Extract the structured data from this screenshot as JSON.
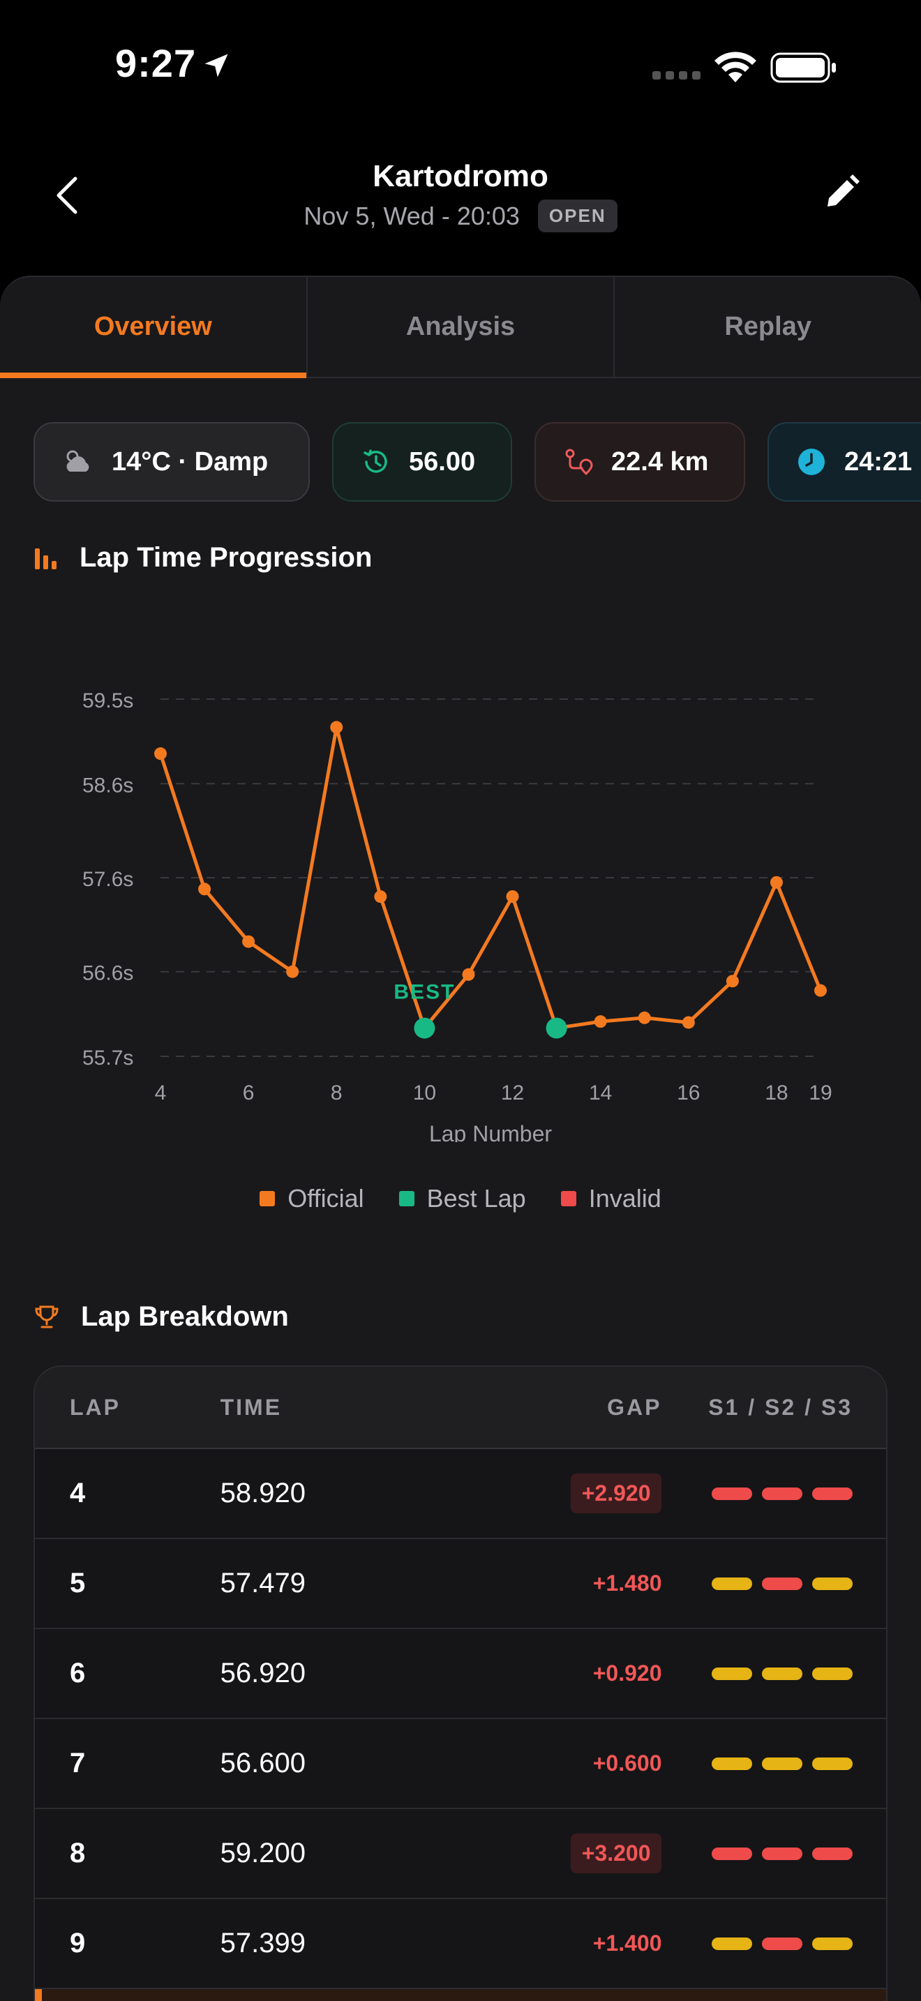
{
  "status_bar": {
    "time": "9:27"
  },
  "header": {
    "title": "Kartodromo",
    "subtitle": "Nov 5, Wed - 20:03",
    "badge": "OPEN"
  },
  "tabs": [
    {
      "label": "Overview",
      "active": true
    },
    {
      "label": "Analysis",
      "active": false
    },
    {
      "label": "Replay",
      "active": false
    }
  ],
  "chips": {
    "weather": {
      "icon": "cloud-sun-icon",
      "label": "14°C · Damp"
    },
    "best": {
      "icon": "history-icon",
      "label": "56.00"
    },
    "distance": {
      "icon": "route-icon",
      "label": "22.4 km"
    },
    "duration": {
      "icon": "clock-icon",
      "label": "24:21"
    }
  },
  "chart_section": {
    "title": "Lap Time Progression",
    "icon": "bar-chart-icon"
  },
  "chart_data": {
    "type": "line",
    "xlabel": "Lap Number",
    "ylabel": "",
    "x": [
      4,
      5,
      6,
      7,
      8,
      9,
      10,
      11,
      12,
      13,
      14,
      15,
      16,
      17,
      18,
      19
    ],
    "series": [
      {
        "name": "Official",
        "values": [
          58.92,
          57.479,
          56.92,
          56.6,
          59.2,
          57.399,
          56.0,
          56.57,
          57.4,
          56.0,
          56.07,
          56.11,
          56.06,
          56.5,
          57.55,
          56.4
        ]
      }
    ],
    "best_laps": [
      10,
      13
    ],
    "best_label": "BEST",
    "y_ticks": [
      "59.5s",
      "58.6s",
      "57.6s",
      "56.6s",
      "55.7s"
    ],
    "y_tick_values": [
      59.5,
      58.6,
      57.6,
      56.6,
      55.7
    ],
    "x_ticks": [
      4,
      6,
      8,
      10,
      12,
      14,
      16,
      18,
      19
    ],
    "ylim": [
      55.7,
      59.5
    ],
    "xlim": [
      4,
      19
    ],
    "grid": true,
    "legend": [
      {
        "name": "Official",
        "color": "#f47a20"
      },
      {
        "name": "Best Lap",
        "color": "#19b985"
      },
      {
        "name": "Invalid",
        "color": "#ef4b4b"
      }
    ],
    "legend_position": "bottom"
  },
  "breakdown": {
    "title": "Lap Breakdown",
    "icon": "trophy-icon",
    "columns": {
      "lap": "LAP",
      "time": "TIME",
      "gap": "GAP",
      "sectors": "S1 / S2 / S3"
    },
    "rows": [
      {
        "lap": "4",
        "time": "58.920",
        "gap": "+2.920",
        "highlight": true,
        "sectors": [
          "#ef4b4b",
          "#ef4b4b",
          "#ef4b4b"
        ]
      },
      {
        "lap": "5",
        "time": "57.479",
        "gap": "+1.480",
        "highlight": false,
        "sectors": [
          "#e6b414",
          "#ef4b4b",
          "#e6b414"
        ]
      },
      {
        "lap": "6",
        "time": "56.920",
        "gap": "+0.920",
        "highlight": false,
        "sectors": [
          "#e6b414",
          "#e6b414",
          "#e6b414"
        ]
      },
      {
        "lap": "7",
        "time": "56.600",
        "gap": "+0.600",
        "highlight": false,
        "sectors": [
          "#e6b414",
          "#e6b414",
          "#e6b414"
        ]
      },
      {
        "lap": "8",
        "time": "59.200",
        "gap": "+3.200",
        "highlight": true,
        "sectors": [
          "#ef4b4b",
          "#ef4b4b",
          "#ef4b4b"
        ]
      },
      {
        "lap": "9",
        "time": "57.399",
        "gap": "+1.400",
        "highlight": false,
        "sectors": [
          "#e6b414",
          "#ef4b4b",
          "#e6b414"
        ]
      }
    ]
  },
  "colors": {
    "accent": "#f47a20",
    "best": "#19b985",
    "invalid": "#ef4b4b",
    "sector_yellow": "#e6b414"
  }
}
